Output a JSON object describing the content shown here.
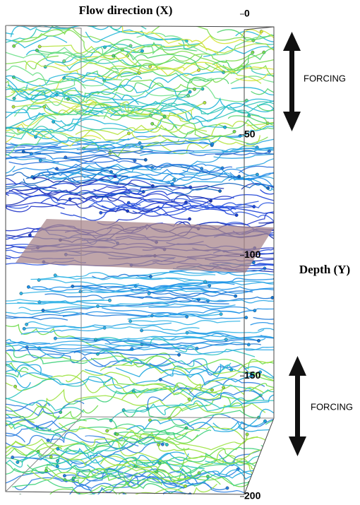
{
  "title": "Flow direction (X)",
  "depth_axis": {
    "label": "Depth (Y)",
    "ticks": [
      0,
      50,
      100,
      150,
      200
    ]
  },
  "annotations": [
    {
      "label": "FORCING"
    },
    {
      "label": "FORCING"
    }
  ]
}
